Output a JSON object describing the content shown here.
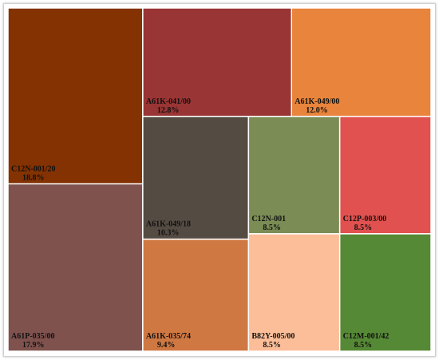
{
  "chart_data": {
    "type": "treemap",
    "title": "",
    "items": [
      {
        "label": "C12N-001/20",
        "value": 18.8,
        "value_label": "18.8%",
        "color": "#843202"
      },
      {
        "label": "A61P-035/00",
        "value": 17.9,
        "value_label": "17.9%",
        "color": "#7F524E"
      },
      {
        "label": "A61K-041/00",
        "value": 12.8,
        "value_label": "12.8%",
        "color": "#993534"
      },
      {
        "label": "A61K-049/00",
        "value": 12.0,
        "value_label": "12.0%",
        "color": "#E8843B"
      },
      {
        "label": "A61K-049/18",
        "value": 10.3,
        "value_label": "10.3%",
        "color": "#544C43"
      },
      {
        "label": "A61K-035/74",
        "value": 9.4,
        "value_label": "9.4%",
        "color": "#CF7842"
      },
      {
        "label": "C12N-001",
        "value": 8.5,
        "value_label": "8.5%",
        "color": "#7B8C55"
      },
      {
        "label": "C12P-003/00",
        "value": 8.5,
        "value_label": "8.5%",
        "color": "#E0514F"
      },
      {
        "label": "B82Y-005/00",
        "value": 8.5,
        "value_label": "8.5%",
        "color": "#FBBE98"
      },
      {
        "label": "C12M-001/42",
        "value": 8.5,
        "value_label": "8.5%",
        "color": "#568935"
      }
    ]
  }
}
